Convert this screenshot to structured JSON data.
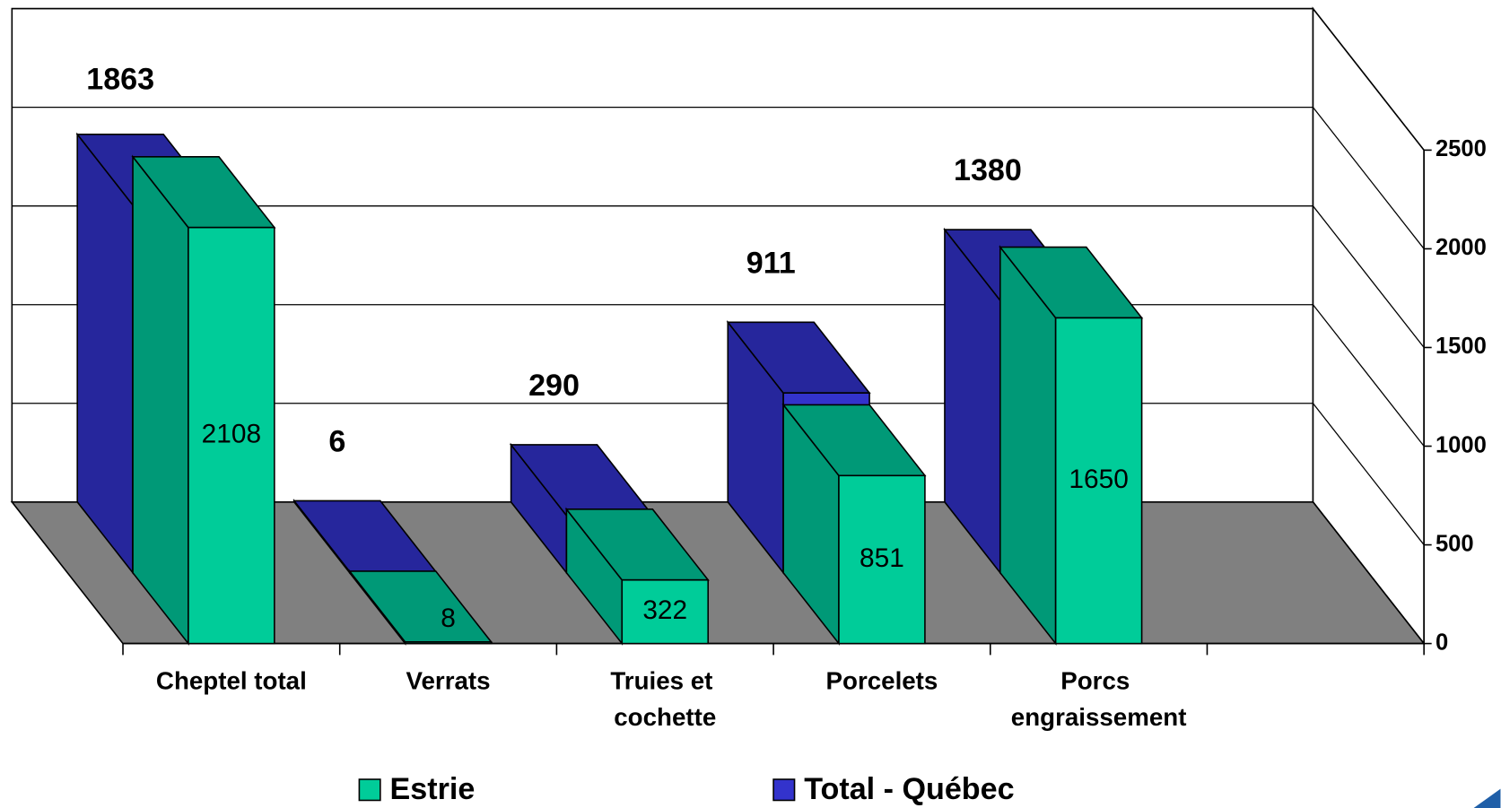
{
  "chart_data": {
    "type": "bar3d",
    "categories": [
      "Cheptel total",
      "Verrats",
      "Truies et cochette",
      "Porcelets",
      "Porcs engraissement"
    ],
    "series": [
      {
        "name": "Estrie",
        "color": "#00cc99",
        "side_color": "#009977",
        "values": [
          2108,
          8,
          322,
          851,
          1650
        ]
      },
      {
        "name": "Total - Québec",
        "color": "#3333cc",
        "side_color": "#26269c",
        "values": [
          1863,
          6,
          290,
          911,
          1380
        ]
      }
    ],
    "ylim": [
      0,
      2500
    ],
    "yticks": [
      0,
      500,
      1000,
      1500,
      2000,
      2500
    ],
    "grid": true,
    "floor_color": "#808080"
  }
}
